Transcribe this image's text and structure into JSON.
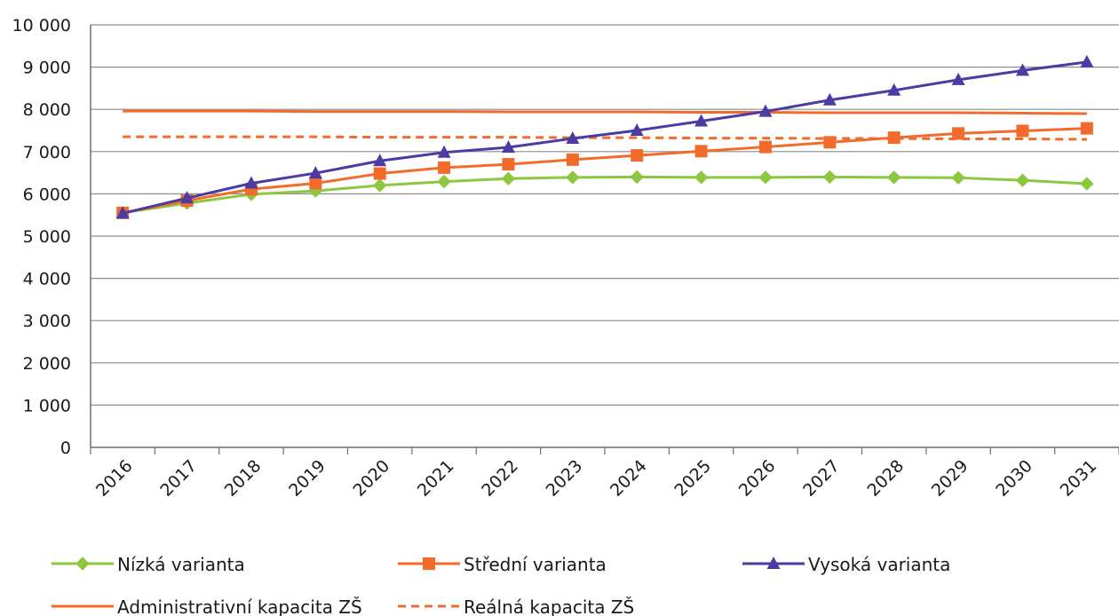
{
  "chart_data": {
    "type": "line",
    "title": "",
    "xlabel": "",
    "ylabel": "",
    "x": [
      "2016",
      "2017",
      "2018",
      "2019",
      "2020",
      "2021",
      "2022",
      "2023",
      "2024",
      "2025",
      "2026",
      "2027",
      "2028",
      "2029",
      "2030",
      "2031"
    ],
    "ylim": [
      0,
      10000
    ],
    "yticks": [
      0,
      1000,
      2000,
      3000,
      4000,
      5000,
      6000,
      7000,
      8000,
      9000,
      10000
    ],
    "ytick_labels": [
      "0",
      "1 000",
      "2 000",
      "3 000",
      "4 000",
      "5 000",
      "6 000",
      "7 000",
      "8 000",
      "9 000",
      "10 000"
    ],
    "grid": "horizontal",
    "legend_position": "bottom",
    "series": [
      {
        "name": "Nízká varianta",
        "color": "#8dc63f",
        "marker": "diamond",
        "line_style": "solid",
        "values": [
          5550,
          5780,
          5990,
          6070,
          6200,
          6290,
          6360,
          6390,
          6400,
          6390,
          6390,
          6400,
          6390,
          6380,
          6320,
          6240
        ]
      },
      {
        "name": "Střední varianta",
        "color": "#f26b2a",
        "marker": "square",
        "line_style": "solid",
        "values": [
          5550,
          5840,
          6110,
          6250,
          6480,
          6620,
          6700,
          6810,
          6910,
          7010,
          7110,
          7220,
          7330,
          7430,
          7490,
          7550
        ]
      },
      {
        "name": "Vysoká varianta",
        "color": "#4b3ba3",
        "marker": "triangle",
        "line_style": "solid",
        "values": [
          5540,
          5900,
          6250,
          6490,
          6780,
          6980,
          7100,
          7310,
          7500,
          7720,
          7950,
          8220,
          8450,
          8700,
          8920,
          9120
        ]
      },
      {
        "name": "Administrativní kapacita ZŠ",
        "color": "#f26b2a",
        "marker": "none",
        "line_style": "solid",
        "values": [
          7960,
          7960,
          7960,
          7950,
          7950,
          7950,
          7940,
          7940,
          7940,
          7930,
          7930,
          7920,
          7920,
          7920,
          7910,
          7900
        ]
      },
      {
        "name": "Reálná kapacita ZŠ",
        "color": "#f26b2a",
        "marker": "none",
        "line_style": "dashed",
        "values": [
          7350,
          7350,
          7350,
          7350,
          7340,
          7340,
          7340,
          7330,
          7330,
          7320,
          7320,
          7310,
          7310,
          7300,
          7300,
          7290
        ]
      }
    ]
  }
}
